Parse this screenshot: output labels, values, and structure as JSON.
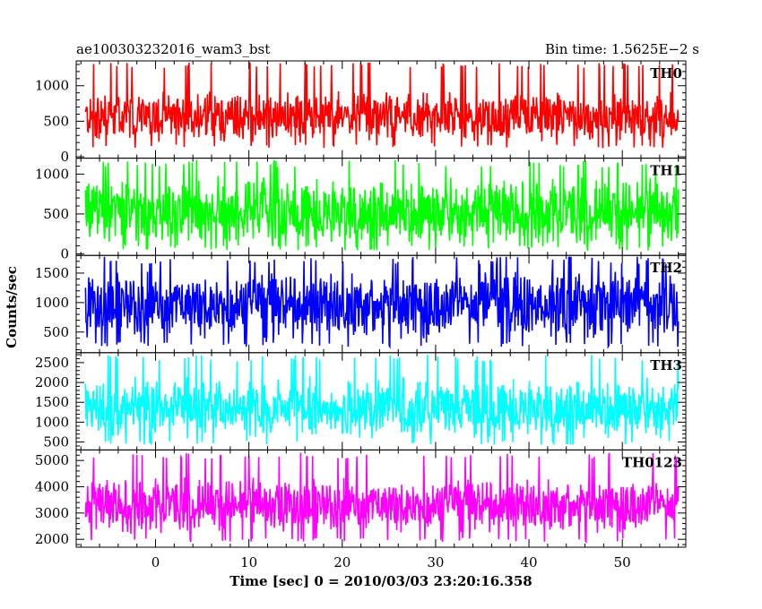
{
  "header": {
    "title": "ae100303232016_wam3_bst",
    "bin_time": "Bin time: 1.5625E−2 s"
  },
  "chart_data": {
    "type": "line",
    "xlabel": "Time [sec] 0 = 2010/03/03 23:20:16.358",
    "ylabel": "Counts/sec",
    "xlim": [
      -8.5,
      56.8
    ],
    "x_ticks": [
      0,
      10,
      20,
      30,
      40,
      50
    ],
    "x_tick_labels": [
      "0",
      "10",
      "20",
      "30",
      "40",
      "50"
    ],
    "data_range_x": [
      -7.5,
      56.0
    ],
    "grid": false,
    "panels": [
      {
        "name": "TH0",
        "color": "#ff0000",
        "ylim": [
          -20,
          1350
        ],
        "yticks": [
          0,
          500,
          1000
        ],
        "ytick_labels": [
          "0",
          "500",
          "1000"
        ],
        "mean": 560,
        "spread": 520,
        "min": 120,
        "max": 1330
      },
      {
        "name": "TH1",
        "color": "#00ff00",
        "ylim": [
          -20,
          1200
        ],
        "yticks": [
          0,
          500,
          1000
        ],
        "ytick_labels": [
          "0",
          "500",
          "1000"
        ],
        "mean": 520,
        "spread": 620,
        "min": 40,
        "max": 1180
      },
      {
        "name": "TH2",
        "color": "#0000ff",
        "ylim": [
          150,
          1800
        ],
        "yticks": [
          500,
          1000,
          1500
        ],
        "ytick_labels": [
          "500",
          "1000",
          "1500"
        ],
        "mean": 960,
        "spread": 820,
        "min": 250,
        "max": 1780
      },
      {
        "name": "TH3",
        "color": "#00ffff",
        "ylim": [
          300,
          2750
        ],
        "yticks": [
          500,
          1000,
          1500,
          2000,
          2500
        ],
        "ytick_labels": [
          "500",
          "1000",
          "1500",
          "2000",
          "2500"
        ],
        "mean": 1350,
        "spread": 1100,
        "min": 420,
        "max": 2700
      },
      {
        "name": "TH0123",
        "color": "#ff00ff",
        "ylim": [
          1700,
          5400
        ],
        "yticks": [
          2000,
          3000,
          4000,
          5000
        ],
        "ytick_labels": [
          "2000",
          "3000",
          "4000",
          "5000"
        ],
        "mean": 3300,
        "spread": 1500,
        "min": 1900,
        "max": 5300
      }
    ]
  }
}
